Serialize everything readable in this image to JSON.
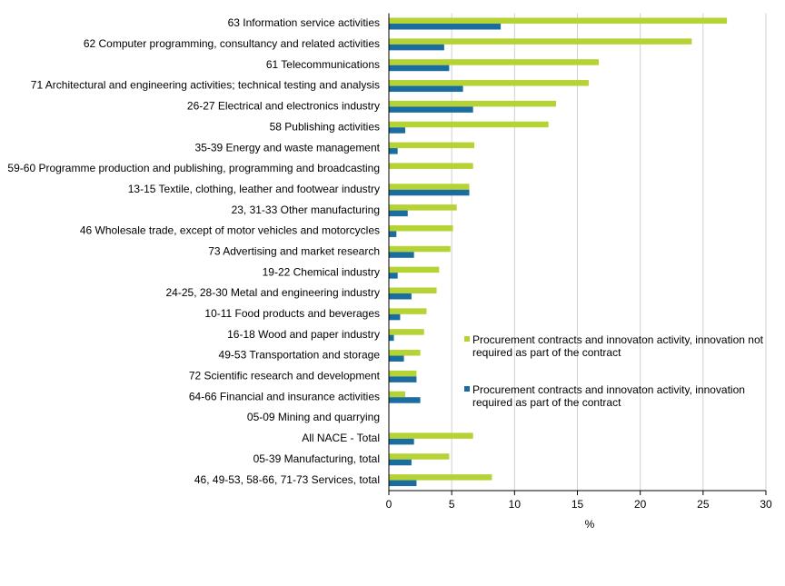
{
  "chart_data": {
    "type": "hbar",
    "categories": [
      "63 Information service activities",
      "62 Computer programming, consultancy and related activities",
      "61 Telecommunications",
      "71 Architectural and engineering activities; technical testing and analysis",
      "26-27 Electrical and electronics industry",
      "58 Publishing activities",
      "35-39 Energy and waste management",
      "59-60 Programme production and publishing, programming and broadcasting",
      "13-15 Textile, clothing, leather and footwear industry",
      "23, 31-33 Other manufacturing",
      "46 Wholesale trade, except of motor vehicles and motorcycles",
      "73 Advertising and market research",
      "19-22 Chemical industry",
      "24-25, 28-30 Metal and engineering industry",
      "10-11 Food products and beverages",
      "16-18 Wood and paper industry",
      "49-53 Transportation and storage",
      "72 Scientific research and development",
      "64-66 Financial and insurance activities",
      "05-09 Mining and quarrying",
      "All NACE - Total",
      "05-39 Manufacturing, total",
      "46, 49-53, 58-66, 71-73 Services, total"
    ],
    "series": [
      {
        "name": "Procurement contracts and innovaton activity, innovation not required as part of the contract",
        "color": "#b5d334",
        "values": [
          26.9,
          24.1,
          16.7,
          15.9,
          13.3,
          12.7,
          6.8,
          6.7,
          6.4,
          5.4,
          5.1,
          4.9,
          4.0,
          3.8,
          3.0,
          2.8,
          2.5,
          2.2,
          1.3,
          0,
          6.7,
          4.8,
          8.2
        ]
      },
      {
        "name": "Procurement contracts and innovaton activity, innovation required as part of the contract",
        "color": "#1b6d9f",
        "values": [
          8.9,
          4.4,
          4.8,
          5.9,
          6.7,
          1.3,
          0.7,
          0,
          6.4,
          1.5,
          0.6,
          2.0,
          0.7,
          1.8,
          0.9,
          0.4,
          1.2,
          2.2,
          2.5,
          0,
          2.0,
          1.8,
          2.2
        ]
      }
    ],
    "x_label": "%",
    "xlim": [
      0,
      30
    ],
    "xticks": [
      0,
      5,
      10,
      15,
      20,
      25,
      30
    ],
    "grid": true
  }
}
